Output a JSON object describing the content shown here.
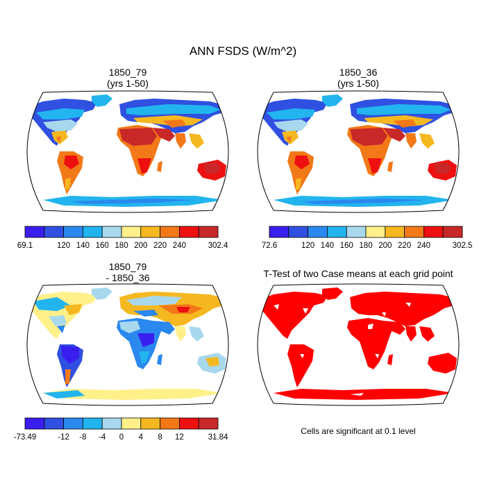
{
  "figure_title": "ANN FSDS (W/m^2)",
  "panels": {
    "top_left": {
      "title_line1": "1850_79",
      "title_line2": "(yrs 1-50)"
    },
    "top_right": {
      "title_line1": "1850_36",
      "title_line2": "(yrs 1-50)"
    },
    "bottom_left": {
      "title_line1": "1850_79",
      "title_line2": "- 1850_36"
    },
    "bottom_right": {
      "title": "T-Test of two Case means at each grid point",
      "note": "Cells are significant at 0.1 level"
    }
  },
  "colorbars": {
    "top_left": {
      "colors": [
        "#3a1ef0",
        "#2f50e0",
        "#2a88ee",
        "#22b4ee",
        "#a8d8ee",
        "#fff08a",
        "#f6b820",
        "#f27818",
        "#ee1010",
        "#c82828"
      ],
      "labels": [
        "69.1",
        "120",
        "140",
        "160",
        "180",
        "200",
        "220",
        "240",
        "302.4"
      ]
    },
    "top_right": {
      "colors": [
        "#3a1ef0",
        "#2f50e0",
        "#2a88ee",
        "#22b4ee",
        "#a8d8ee",
        "#fff08a",
        "#f6b820",
        "#f27818",
        "#ee1010",
        "#c82828"
      ],
      "labels": [
        "72.6",
        "120",
        "140",
        "160",
        "180",
        "200",
        "220",
        "240",
        "302.5"
      ]
    },
    "bottom_left": {
      "colors": [
        "#3a1ef0",
        "#2f50e0",
        "#2a88ee",
        "#22b4ee",
        "#a8d8ee",
        "#fff08a",
        "#f6b820",
        "#f27818",
        "#ee1010",
        "#c82828"
      ],
      "labels": [
        "-73.49",
        "-12",
        "-8",
        "-4",
        "0",
        "4",
        "8",
        "12",
        "31.84"
      ]
    }
  },
  "colors": {
    "significance": "#ff0000",
    "ocean": "#ffffff",
    "outline": "#000000"
  }
}
